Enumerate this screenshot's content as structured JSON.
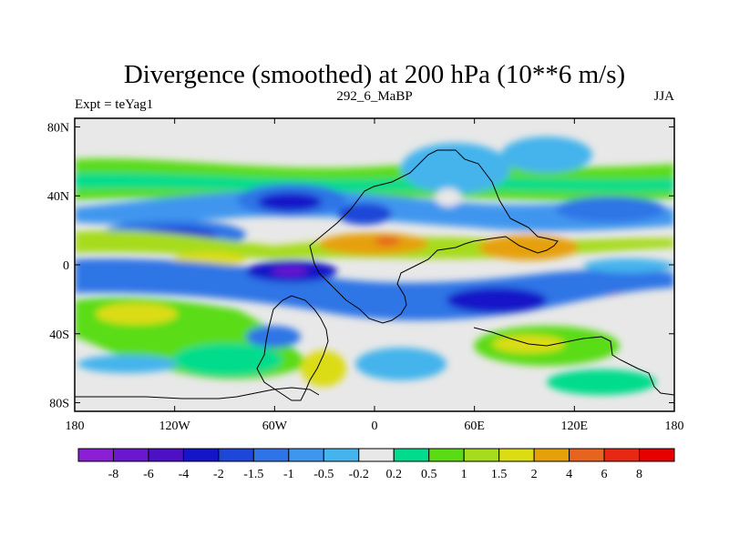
{
  "chart_data": {
    "type": "heatmap",
    "title": "Divergence (smoothed) at 200 hPa (10**6 m/s)",
    "left_label": "Expt = teYag1",
    "center_label": "292_6_MaBP",
    "right_label": "JJA",
    "x_ticks": [
      "180",
      "120W",
      "60W",
      "0",
      "60E",
      "120E",
      "180"
    ],
    "y_ticks": [
      "80N",
      "40N",
      "0",
      "40S",
      "80S"
    ],
    "xlim": [
      -180,
      180
    ],
    "ylim": [
      -85,
      85
    ],
    "colorbar": {
      "levels": [
        "-8",
        "-6",
        "-4",
        "-2",
        "-1.5",
        "-1",
        "-0.5",
        "-0.2",
        "0.2",
        "0.5",
        "1",
        "1.5",
        "2",
        "4",
        "6",
        "8"
      ],
      "colors": [
        "#8a1fd6",
        "#6a18d0",
        "#4d10c4",
        "#1414c8",
        "#1e46d8",
        "#2e74e6",
        "#3f96ee",
        "#45b4ec",
        "#e8e8e8",
        "#00dc8c",
        "#5adc14",
        "#a6dc1e",
        "#dcdc14",
        "#e6a00a",
        "#e6641e",
        "#e62814",
        "#e60000"
      ]
    }
  }
}
